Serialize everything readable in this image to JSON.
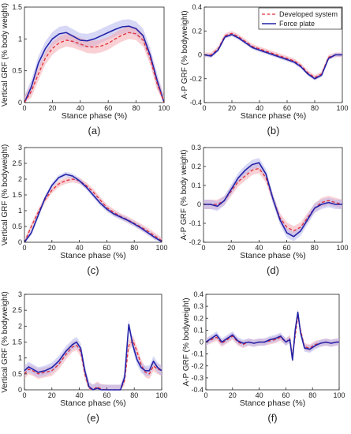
{
  "colors": {
    "developed": "#e0303a",
    "developed_band": "#f4aab0",
    "force": "#2323a8",
    "force_band": "#b7b7ee"
  },
  "legend": {
    "developed": "Developed system",
    "force": "Force plate"
  },
  "chart_data": [
    {
      "type": "line",
      "panel": "(a)",
      "xlabel": "Stance phase (%)",
      "ylabel": "Vertical GRF (% body weight)",
      "xlim": [
        0,
        100
      ],
      "ylim": [
        0,
        1.5
      ],
      "xticks": [
        0,
        20,
        40,
        60,
        80,
        100
      ],
      "yticks": [
        0,
        0.5,
        1,
        1.5
      ],
      "ytick_labels": [
        "0",
        "0.5",
        "1",
        "1.5"
      ],
      "legend": false,
      "series": [
        {
          "name": "Force plate",
          "band": 0.11,
          "x": [
            0,
            5,
            10,
            15,
            20,
            25,
            30,
            35,
            40,
            45,
            50,
            55,
            60,
            65,
            70,
            75,
            80,
            85,
            90,
            95,
            100
          ],
          "y": [
            0,
            0.25,
            0.62,
            0.85,
            1.0,
            1.08,
            1.1,
            1.04,
            0.98,
            0.97,
            1.0,
            1.05,
            1.1,
            1.15,
            1.19,
            1.2,
            1.16,
            1.05,
            0.75,
            0.35,
            0.0
          ]
        },
        {
          "name": "Developed system",
          "band": 0.1,
          "x": [
            0,
            5,
            10,
            15,
            20,
            25,
            30,
            35,
            40,
            45,
            50,
            55,
            60,
            65,
            70,
            75,
            80,
            85,
            90,
            95,
            100
          ],
          "y": [
            0,
            0.18,
            0.45,
            0.7,
            0.85,
            0.94,
            0.98,
            0.96,
            0.92,
            0.88,
            0.87,
            0.89,
            0.93,
            1.0,
            1.06,
            1.1,
            1.08,
            0.98,
            0.7,
            0.3,
            0.0
          ]
        }
      ]
    },
    {
      "type": "line",
      "panel": "(b)",
      "xlabel": "Stance phase (%)",
      "ylabel": "A-P GRF (% bodyweight)",
      "xlim": [
        0,
        100
      ],
      "ylim": [
        -0.4,
        0.4
      ],
      "xticks": [
        0,
        20,
        40,
        60,
        80,
        100
      ],
      "yticks": [
        -0.4,
        -0.2,
        0,
        0.2,
        0.4
      ],
      "ytick_labels": [
        "-0.4",
        "-0.2",
        "0",
        "0.2",
        "0.4"
      ],
      "legend": true,
      "series": [
        {
          "name": "Developed system",
          "band": 0.02,
          "x": [
            0,
            5,
            10,
            15,
            20,
            25,
            30,
            35,
            40,
            45,
            50,
            55,
            60,
            65,
            70,
            75,
            80,
            85,
            90,
            95,
            100
          ],
          "y": [
            0,
            0.0,
            0.05,
            0.16,
            0.18,
            0.15,
            0.11,
            0.07,
            0.05,
            0.03,
            0.01,
            -0.01,
            -0.03,
            -0.05,
            -0.09,
            -0.15,
            -0.19,
            -0.16,
            -0.02,
            0.0,
            0.0
          ]
        },
        {
          "name": "Force plate",
          "band": 0.015,
          "x": [
            0,
            5,
            10,
            15,
            20,
            25,
            30,
            35,
            40,
            45,
            50,
            55,
            60,
            65,
            70,
            75,
            80,
            85,
            90,
            95,
            100
          ],
          "y": [
            0,
            -0.01,
            0.04,
            0.15,
            0.17,
            0.14,
            0.1,
            0.06,
            0.04,
            0.02,
            0.0,
            -0.02,
            -0.04,
            -0.06,
            -0.1,
            -0.16,
            -0.2,
            -0.17,
            -0.03,
            0.0,
            0.0
          ]
        }
      ]
    },
    {
      "type": "line",
      "panel": "(c)",
      "xlabel": "Stance phase (%)",
      "ylabel": "Vertical GRF (% bodyweight)",
      "xlim": [
        0,
        100
      ],
      "ylim": [
        0,
        3
      ],
      "xticks": [
        0,
        20,
        40,
        60,
        80,
        100
      ],
      "yticks": [
        0,
        0.5,
        1,
        1.5,
        2,
        2.5,
        3
      ],
      "ytick_labels": [
        "0",
        "0.5",
        "1",
        "1.5",
        "2",
        "2.5",
        "3"
      ],
      "legend": false,
      "series": [
        {
          "name": "Developed system",
          "band": 0.1,
          "x": [
            0,
            5,
            10,
            15,
            20,
            25,
            30,
            35,
            40,
            45,
            50,
            55,
            60,
            65,
            70,
            75,
            80,
            85,
            90,
            95,
            100
          ],
          "y": [
            0.0,
            0.5,
            0.95,
            1.35,
            1.65,
            1.85,
            1.95,
            2.0,
            1.95,
            1.8,
            1.6,
            1.35,
            1.1,
            0.95,
            0.82,
            0.72,
            0.6,
            0.48,
            0.35,
            0.2,
            0.05
          ]
        },
        {
          "name": "Force plate",
          "band": 0.08,
          "x": [
            0,
            5,
            10,
            15,
            20,
            25,
            30,
            35,
            40,
            45,
            50,
            55,
            60,
            65,
            70,
            75,
            80,
            85,
            90,
            95,
            100
          ],
          "y": [
            0.0,
            0.3,
            0.85,
            1.4,
            1.8,
            2.05,
            2.15,
            2.1,
            1.95,
            1.75,
            1.5,
            1.25,
            1.05,
            0.9,
            0.8,
            0.7,
            0.58,
            0.45,
            0.3,
            0.15,
            0.02
          ]
        }
      ]
    },
    {
      "type": "line",
      "panel": "(d)",
      "xlabel": "Stance phase (%)",
      "ylabel": "A-P GRF (% body weight)",
      "xlim": [
        0,
        100
      ],
      "ylim": [
        -0.2,
        0.3
      ],
      "xticks": [
        0,
        20,
        40,
        60,
        80,
        100
      ],
      "yticks": [
        -0.2,
        -0.1,
        0,
        0.1,
        0.2,
        0.3
      ],
      "ytick_labels": [
        "-0.2",
        "-0.1",
        "0",
        "0.1",
        "0.2",
        "0.3"
      ],
      "legend": false,
      "series": [
        {
          "name": "Developed system",
          "band": 0.025,
          "x": [
            0,
            5,
            10,
            15,
            20,
            25,
            30,
            35,
            40,
            45,
            50,
            55,
            60,
            65,
            70,
            75,
            80,
            85,
            90,
            95,
            100
          ],
          "y": [
            0,
            0.0,
            0.0,
            0.02,
            0.07,
            0.12,
            0.15,
            0.18,
            0.19,
            0.14,
            0.03,
            -0.07,
            -0.12,
            -0.14,
            -0.12,
            -0.07,
            -0.02,
            0.01,
            0.02,
            0.01,
            0.0
          ]
        },
        {
          "name": "Force plate",
          "band": 0.025,
          "x": [
            0,
            5,
            10,
            15,
            20,
            25,
            30,
            35,
            40,
            45,
            50,
            55,
            60,
            65,
            70,
            75,
            80,
            85,
            90,
            95,
            100
          ],
          "y": [
            0,
            0.0,
            -0.01,
            0.02,
            0.08,
            0.14,
            0.18,
            0.21,
            0.22,
            0.16,
            0.03,
            -0.08,
            -0.15,
            -0.17,
            -0.14,
            -0.08,
            -0.02,
            0.0,
            0.01,
            0.0,
            0.0
          ]
        }
      ]
    },
    {
      "type": "line",
      "panel": "(e)",
      "xlabel": "Stance phase (%)",
      "ylabel": "Vertical GRF (% bodyweight)",
      "xlim": [
        0,
        100
      ],
      "ylim": [
        0,
        3
      ],
      "xticks": [
        0,
        20,
        40,
        60,
        80,
        100
      ],
      "yticks": [
        0,
        0.5,
        1,
        1.5,
        2,
        2.5,
        3
      ],
      "ytick_labels": [
        "0",
        "0.5",
        "1",
        "1.5",
        "2",
        "2.5",
        "3"
      ],
      "legend": false,
      "series": [
        {
          "name": "Developed system",
          "band": 0.16,
          "x": [
            0,
            3,
            6,
            10,
            15,
            20,
            25,
            30,
            35,
            38,
            41,
            44,
            47,
            50,
            53,
            56,
            60,
            65,
            70,
            73,
            76,
            79,
            82,
            85,
            88,
            91,
            94,
            97,
            100
          ],
          "y": [
            0.5,
            0.65,
            0.6,
            0.5,
            0.55,
            0.6,
            0.8,
            1.1,
            1.35,
            1.4,
            1.2,
            0.5,
            0.05,
            0.0,
            0.1,
            0.02,
            0.0,
            0.0,
            0.0,
            0.3,
            1.4,
            1.55,
            1.2,
            0.8,
            0.55,
            0.5,
            0.75,
            0.65,
            0.6
          ]
        },
        {
          "name": "Force plate",
          "band": 0.16,
          "x": [
            0,
            3,
            6,
            10,
            15,
            20,
            25,
            30,
            35,
            38,
            41,
            44,
            47,
            50,
            53,
            56,
            60,
            65,
            70,
            73,
            76,
            79,
            82,
            85,
            88,
            91,
            94,
            97,
            100
          ],
          "y": [
            0.6,
            0.72,
            0.65,
            0.55,
            0.6,
            0.7,
            0.9,
            1.2,
            1.42,
            1.5,
            1.3,
            0.6,
            0.1,
            0.0,
            0.05,
            0.0,
            0.0,
            0.0,
            0.0,
            0.4,
            2.05,
            1.4,
            0.95,
            0.7,
            0.6,
            0.6,
            0.9,
            0.7,
            0.6
          ]
        }
      ]
    },
    {
      "type": "line",
      "panel": "(f)",
      "xlabel": "Stance phase (%)",
      "ylabel": "A-P GRF (% bodyweight)",
      "xlim": [
        0,
        100
      ],
      "ylim": [
        -0.4,
        0.4
      ],
      "xticks": [
        0,
        20,
        40,
        60,
        80,
        100
      ],
      "yticks": [
        -0.4,
        -0.3,
        -0.2,
        -0.1,
        0,
        0.1,
        0.2,
        0.3,
        0.4
      ],
      "ytick_labels": [
        "-0.4",
        "-0.3",
        "-0.2",
        "-0.1",
        "0",
        "0.1",
        "0.2",
        "0.3",
        "0.4"
      ],
      "legend": false,
      "series": [
        {
          "name": "Developed system",
          "band": 0.03,
          "x": [
            0,
            4,
            8,
            12,
            16,
            20,
            24,
            28,
            32,
            36,
            40,
            44,
            48,
            52,
            56,
            60,
            63,
            65,
            67,
            69,
            71,
            74,
            78,
            82,
            86,
            90,
            94,
            98,
            100
          ],
          "y": [
            0,
            0.02,
            0.04,
            -0.01,
            0.02,
            0.05,
            0.0,
            -0.02,
            0.0,
            -0.01,
            0.0,
            0.0,
            0.01,
            0.02,
            0.04,
            0.0,
            0.03,
            -0.12,
            0.05,
            0.22,
            0.1,
            -0.04,
            -0.05,
            -0.02,
            -0.01,
            0.0,
            -0.01,
            0.0,
            0.0
          ]
        },
        {
          "name": "Force plate",
          "band": 0.03,
          "x": [
            0,
            4,
            8,
            12,
            16,
            20,
            24,
            28,
            32,
            36,
            40,
            44,
            48,
            52,
            56,
            60,
            63,
            65,
            67,
            69,
            71,
            74,
            78,
            82,
            86,
            90,
            94,
            98,
            100
          ],
          "y": [
            0,
            0.03,
            0.06,
            0.0,
            0.03,
            0.06,
            0.01,
            -0.01,
            0.0,
            -0.01,
            0.0,
            0.0,
            0.02,
            0.03,
            0.05,
            0.0,
            0.02,
            -0.15,
            0.1,
            0.25,
            0.08,
            -0.05,
            -0.06,
            -0.03,
            -0.01,
            0.0,
            -0.01,
            0.0,
            0.0
          ]
        }
      ]
    }
  ]
}
